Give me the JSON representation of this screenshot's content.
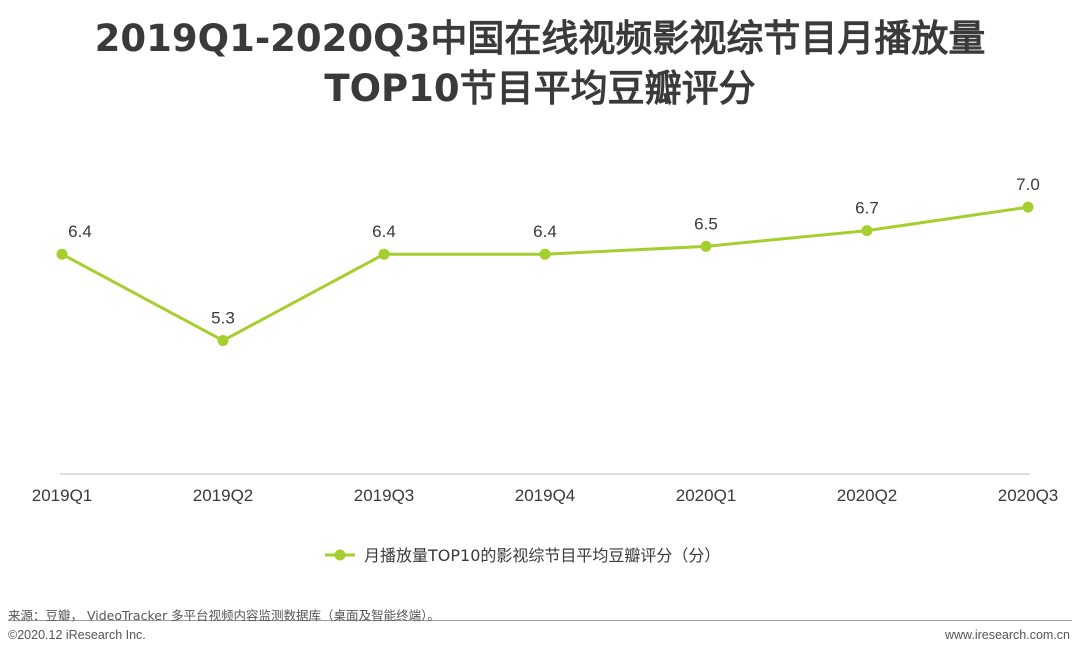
{
  "title": {
    "line1": "2019Q1-2020Q3中国在线视频影视综节目月播放量",
    "line2": "TOP10节目平均豆瓣评分"
  },
  "chart_data": {
    "type": "line",
    "categories": [
      "2019Q1",
      "2019Q2",
      "2019Q3",
      "2019Q4",
      "2020Q1",
      "2020Q2",
      "2020Q3"
    ],
    "series": [
      {
        "name": "月播放量TOP10的影视综节目平均豆瓣评分（分）",
        "values": [
          6.4,
          5.3,
          6.4,
          6.4,
          6.5,
          6.7,
          7.0
        ],
        "labels": [
          "6.4",
          "5.3",
          "6.4",
          "6.4",
          "6.5",
          "6.7",
          "7.0"
        ],
        "color": "#a5cf2e"
      }
    ],
    "title": "2019Q1-2020Q3中国在线视频影视综节目月播放量TOP10节目平均豆瓣评分",
    "xlabel": "",
    "ylabel": "",
    "ylim": [
      3.6,
      7.6
    ],
    "grid": false,
    "legend": "bottom"
  },
  "footer": {
    "source": "来源：豆瓣， VideoTracker 多平台视频内容监测数据库（桌面及智能终端）。",
    "copyright": "©2020.12 iResearch Inc.",
    "website": "www.iresearch.com.cn"
  },
  "colors": {
    "line": "#a5cf2e",
    "axis": "#bfbfbf",
    "text": "#3a3a3a"
  }
}
